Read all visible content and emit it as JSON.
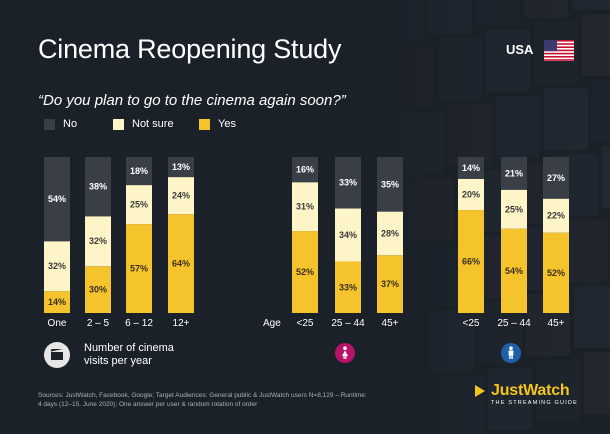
{
  "header": {
    "title": "Cinema Reopening Study",
    "country": "USA",
    "question": "“Do you plan to go to the cinema again soon?”"
  },
  "legend": [
    {
      "label": "No",
      "color": "#3a3f47"
    },
    {
      "label": "Not sure",
      "color": "#fdf5c7"
    },
    {
      "label": "Yes",
      "color": "#f5c32c"
    }
  ],
  "chart_data": {
    "type": "bar",
    "stacked": true,
    "percent": true,
    "ylim": [
      0,
      100
    ],
    "groups": [
      {
        "group_label": "",
        "icon": "film-icon",
        "categories": [
          "One",
          "2 – 5",
          "6 – 12",
          "12+"
        ],
        "series": [
          {
            "name": "Yes",
            "values": [
              14,
              30,
              57,
              64
            ]
          },
          {
            "name": "Not sure",
            "values": [
              32,
              32,
              25,
              24
            ]
          },
          {
            "name": "No",
            "values": [
              54,
              38,
              18,
              13
            ]
          }
        ]
      },
      {
        "group_label": "Age",
        "icon": "female-icon",
        "categories": [
          "<25",
          "25 – 44",
          "45+"
        ],
        "series": [
          {
            "name": "Yes",
            "values": [
              52,
              33,
              37
            ]
          },
          {
            "name": "Not sure",
            "values": [
              31,
              34,
              28
            ]
          },
          {
            "name": "No",
            "values": [
              16,
              33,
              35
            ]
          }
        ]
      },
      {
        "group_label": "",
        "icon": "male-icon",
        "categories": [
          "<25",
          "25 – 44",
          "45+"
        ],
        "series": [
          {
            "name": "Yes",
            "values": [
              66,
              54,
              52
            ]
          },
          {
            "name": "Not sure",
            "values": [
              20,
              25,
              22
            ]
          },
          {
            "name": "No",
            "values": [
              14,
              21,
              27
            ]
          }
        ]
      }
    ]
  },
  "visits_note": "Number of cinema visits per year",
  "sources": "Sources: JustWatch, Facebook, Google; Target Audiences: General public & JustWatch users N=8,129 – Runtime: 4 days (12–15. June 2020); One answer per user & random rotation of order",
  "logo": {
    "name": "JustWatch",
    "tagline": "THE STREAMING GUIDE"
  },
  "colors": {
    "yes": "#f5c32c",
    "notsure": "#fdf5c7",
    "no": "#3a3f47",
    "background": "#1b2129"
  }
}
